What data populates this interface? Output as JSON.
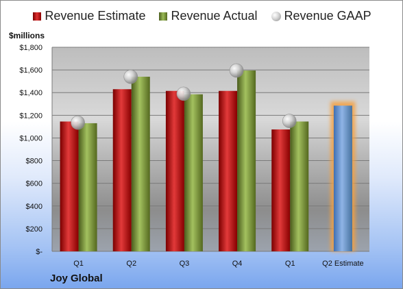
{
  "legend": {
    "estimate": "Revenue Estimate",
    "actual": "Revenue Actual",
    "gaap": "Revenue GAAP"
  },
  "unit_label": "$millions",
  "company": "Joy Global",
  "colors": {
    "estimate": "#c00000",
    "actual": "#9bbb59",
    "gaap": "#bfbfbf",
    "forecast": "#6f9bd8",
    "forecast_glow": "#f5a040"
  },
  "chart_data": {
    "type": "bar",
    "categories": [
      "Q1",
      "Q2",
      "Q3",
      "Q4",
      "Q1",
      "Q2 Estimate"
    ],
    "series": [
      {
        "name": "Revenue Estimate",
        "values": [
          1145,
          1430,
          1415,
          1415,
          1075,
          null
        ]
      },
      {
        "name": "Revenue Actual",
        "values": [
          1130,
          1540,
          1385,
          1595,
          1145,
          null
        ]
      },
      {
        "name": "Revenue GAAP",
        "values": [
          1135,
          1540,
          1390,
          1595,
          1150,
          null
        ]
      },
      {
        "name": "Q2 Estimate",
        "values": [
          null,
          null,
          null,
          null,
          null,
          1285
        ]
      }
    ],
    "ylim": [
      0,
      1800
    ],
    "yticks": [
      0,
      200,
      400,
      600,
      800,
      1000,
      1200,
      1400,
      1600,
      1800
    ],
    "ytick_labels": [
      "$-",
      "$200",
      "$400",
      "$600",
      "$800",
      "$1,000",
      "$1,200",
      "$1,400",
      "$1,600",
      "$1,800"
    ],
    "ylabel": "$millions",
    "grid": true,
    "legend_position": "top"
  }
}
